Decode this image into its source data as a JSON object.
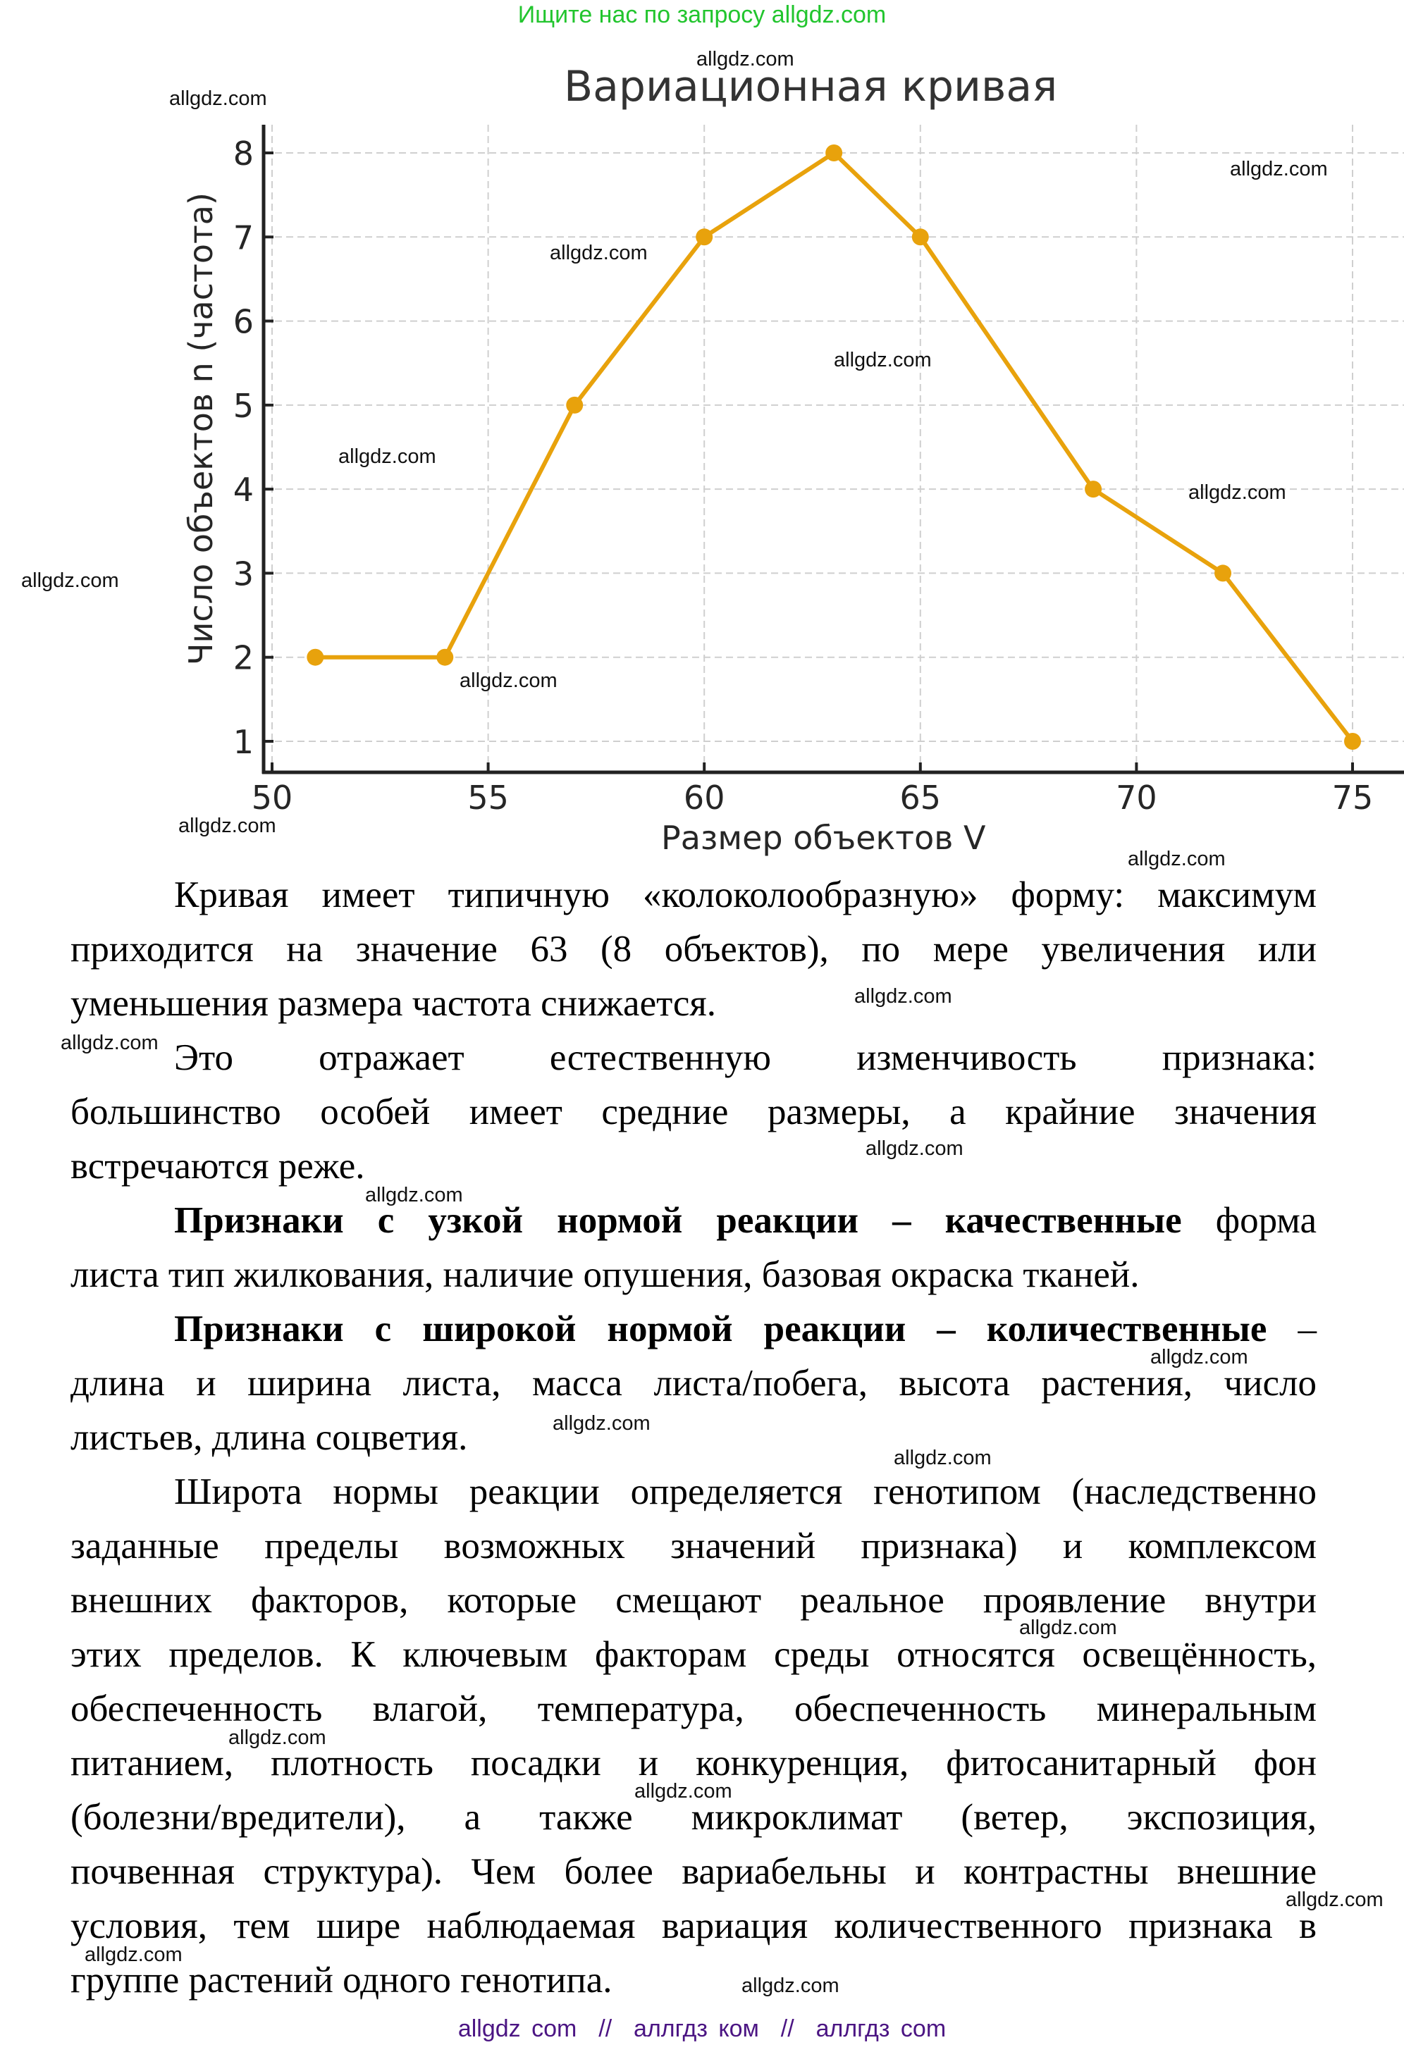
{
  "header": {
    "search_hint": "Ищите нас по запросу allgdz.com"
  },
  "chart_data": {
    "type": "line",
    "title": "Вариационная кривая",
    "xlabel": "Размер объектов V",
    "ylabel": "Число объектов n (частота)",
    "x": [
      51,
      54,
      57,
      60,
      63,
      65,
      69,
      72,
      75
    ],
    "y": [
      2,
      2,
      5,
      7,
      8,
      7,
      4,
      3,
      1
    ],
    "series": [
      {
        "name": "Частота",
        "x": [
          51,
          54,
          57,
          60,
          63,
          65,
          69,
          72,
          75
        ],
        "values": [
          2,
          2,
          5,
          7,
          8,
          7,
          4,
          3,
          1
        ],
        "color": "#e8a20c",
        "marker": "circle"
      }
    ],
    "xticks": [
      "50",
      "55",
      "60",
      "65",
      "70",
      "75"
    ],
    "yticks": [
      "1",
      "2",
      "3",
      "4",
      "5",
      "6",
      "7",
      "8"
    ],
    "xlim": [
      50,
      75
    ],
    "ylim": [
      1,
      8
    ],
    "grid": true,
    "legend": "none"
  },
  "body": {
    "lines": [
      "Кривая имеет типичную «колоколообразную» форму: максимум",
      "приходится на значение 63 (8 объектов), по мере увеличения или",
      "уменьшения размера частота снижается.",
      "Это отражает естественную изменчивость признака:",
      "большинство особей имеет средние размеры, а крайние значения",
      "встречаются реже.",
      {
        "bold": "Признаки с узкой нормой реакции – качественные",
        "rest": " форма"
      },
      "листа тип жилкования, наличие опушения, базовая окраска тканей.",
      {
        "bold": "Признаки с широкой нормой реакции – количественные",
        "rest": " –"
      },
      "длина и ширина листа, масса листа/побега, высота растения, число",
      "листьев, длина соцветия.",
      "Широта нормы реакции определяется генотипом (наследственно",
      "заданные пределы возможных значений признака) и комплексом",
      "внешних факторов, которые смещают реальное проявление внутри",
      "этих пределов. К ключевым факторам среды относятся освещённость,",
      "обеспеченность влагой, температура, обеспеченность минеральным",
      "питанием, плотность посадки и конкуренция, фитосанитарный фон",
      "(болезни/вредители), а также микроклимат (ветер, экспозиция,",
      "почвенная структура). Чем более вариабельны и контрастны внешние",
      "условия, тем шире наблюдаемая вариация количественного признака в",
      "группе растений одного генотипа."
    ],
    "narrow_bold": "Признаки с узкой нормой реакции – качественные",
    "narrow_rest": " форма",
    "wide_bold": "Признаки с широкой нормой реакции – количественные",
    "wide_rest": " –"
  },
  "watermark": {
    "text": "allgdz.com"
  },
  "footer": {
    "links": "allgdz com  //  аллгдз ком  //  аллгдз com"
  },
  "colors": {
    "header_green": "#22c52e",
    "footer_purple": "#4b1583",
    "line_orange": "#e8a20c"
  }
}
